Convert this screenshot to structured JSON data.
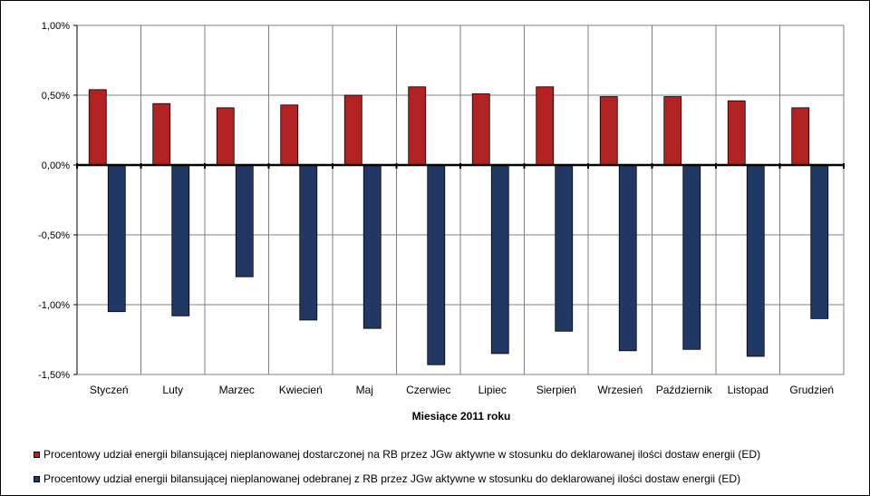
{
  "chart_data": {
    "type": "bar",
    "xlabel": "Miesiące 2011  roku",
    "ylabel": "",
    "ylim": [
      -1.5,
      1.0
    ],
    "yticks": [
      1.0,
      0.5,
      0.0,
      -0.5,
      -1.0,
      -1.5
    ],
    "ytick_labels": [
      "1,00%",
      "0,50%",
      "0,00%",
      "-0,50%",
      "-1,00%",
      "-1,50%"
    ],
    "grid": true,
    "legend_position": "bottom",
    "categories": [
      "Styczeń",
      "Luty",
      "Marzec",
      "Kwiecień",
      "Maj",
      "Czerwiec",
      "Lipiec",
      "Sierpień",
      "Wrzesień",
      "Październik",
      "Listopad",
      "Grudzień"
    ],
    "series": [
      {
        "name": "Procentowy udział energii bilansującej nieplanowanej dostarczonej na RB przez JGw aktywne w stosunku do deklarowanej ilości dostaw energii (ED)",
        "color": "#B22222",
        "values": [
          0.54,
          0.44,
          0.41,
          0.43,
          0.5,
          0.56,
          0.51,
          0.56,
          0.49,
          0.49,
          0.46,
          0.41
        ]
      },
      {
        "name": "Procentowy udział energii bilansującej nieplanowanej odebranej z RB przez JGw aktywne w stosunku do deklarowanej ilości dostaw energii (ED)",
        "color": "#1F3864",
        "values": [
          -1.05,
          -1.08,
          -0.8,
          -1.11,
          -1.17,
          -1.43,
          -1.35,
          -1.19,
          -1.33,
          -1.32,
          -1.37,
          -1.1
        ]
      }
    ]
  }
}
